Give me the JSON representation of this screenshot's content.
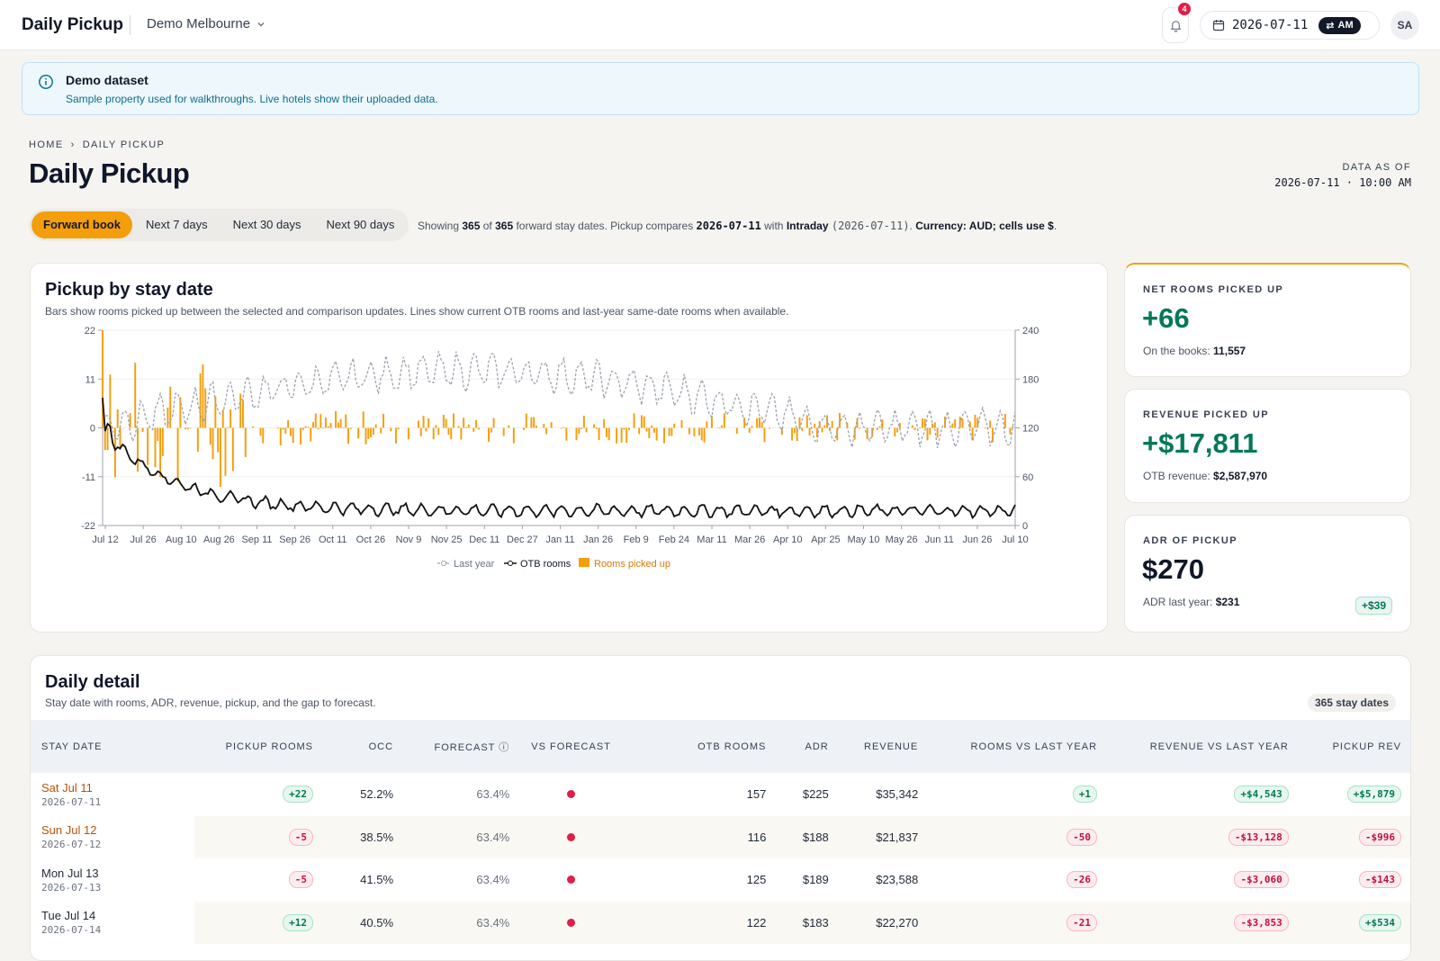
{
  "app": {
    "title": "Daily Pickup",
    "property": "Demo Melbourne",
    "notifications": "4",
    "date": "2026-07-11",
    "session": "AM",
    "user_initials": "SA"
  },
  "banner": {
    "title": "Demo dataset",
    "text": "Sample property used for walkthroughs. Live hotels show their uploaded data."
  },
  "breadcrumb": {
    "home": "HOME",
    "current": "DAILY PICKUP"
  },
  "page_title": "Daily Pickup",
  "data_as_of": {
    "label": "DATA AS OF",
    "value": "2026-07-11 · 10:00 AM"
  },
  "tabs": [
    "Forward book",
    "Next 7 days",
    "Next 30 days",
    "Next 90 days"
  ],
  "active_tab": "Forward book",
  "showing": {
    "p1": "Showing ",
    "shown": "365",
    "p2": " of ",
    "total": "365",
    "p3": " forward stay dates. Pickup compares ",
    "selected": "2026-07-11",
    "p4": " with ",
    "comparison": "Intraday",
    "comparison_date": "(2026-07-11)",
    "p5": ". ",
    "currency": "Currency: AUD; cells use $",
    "p6": "."
  },
  "chart": {
    "title": "Pickup by stay date",
    "subtitle": "Bars show rooms picked up between the selected and comparison updates. Lines show current OTB rooms and last-year same-date rooms when available."
  },
  "chart_data": {
    "type": "bar+line",
    "x_ticks": [
      "Jul 12",
      "Jul 26",
      "Aug 10",
      "Aug 26",
      "Sep 11",
      "Sep 26",
      "Oct 11",
      "Oct 26",
      "Nov 9",
      "Nov 25",
      "Dec 11",
      "Dec 27",
      "Jan 11",
      "Jan 26",
      "Feb 9",
      "Feb 24",
      "Mar 11",
      "Mar 26",
      "Apr 10",
      "Apr 25",
      "May 10",
      "May 26",
      "Jun 11",
      "Jun 26",
      "Jul 10"
    ],
    "y_left_ticks": [
      "22",
      "11",
      "0",
      "-11",
      "-22"
    ],
    "y_left_range": [
      -22,
      22
    ],
    "y_right_ticks": [
      "240",
      "180",
      "120",
      "60",
      "0"
    ],
    "y_right_range": [
      0,
      240
    ],
    "legend": [
      "Last year",
      "OTB rooms",
      "Rooms picked up"
    ],
    "legend_placement": "bottom-center",
    "series_colors": {
      "last_year": "#9ca3af",
      "otb_rooms": "#111111",
      "rooms_picked_up": "#f59e0b"
    },
    "first_values": {
      "stay_date": [
        "2026-07-11",
        "2026-07-12",
        "2026-07-13",
        "2026-07-14"
      ],
      "rooms_picked_up": [
        22,
        -5,
        -5,
        12
      ],
      "otb_rooms": [
        157,
        116,
        125,
        122
      ]
    },
    "otb_rooms_trend": {
      "start": 157,
      "day_90": 30,
      "end_range": [
        16,
        28
      ]
    },
    "last_year_trend": {
      "start": 120,
      "peak_range": [
        170,
        220
      ],
      "end": 140
    },
    "rooms_picked_up_typical_range": [
      -4,
      4
    ]
  },
  "kpis": [
    {
      "label": "NET ROOMS PICKED UP",
      "value": "+66",
      "sub_label": "On the books: ",
      "sub_value": "11,557"
    },
    {
      "label": "REVENUE PICKED UP",
      "value": "+$17,811",
      "sub_label": "OTB revenue: ",
      "sub_value": "$2,587,970"
    },
    {
      "label": "ADR OF PICKUP",
      "value": "$270",
      "sub_label": "ADR last year: ",
      "sub_value": "$231",
      "delta": "+$39"
    }
  ],
  "table": {
    "title": "Daily detail",
    "subtitle": "Stay date with rooms, ADR, revenue, pickup, and the gap to forecast.",
    "count": "365 stay dates",
    "columns": [
      "STAY DATE",
      "PICKUP ROOMS",
      "OCC",
      "FORECAST",
      "VS FORECAST",
      "OTB ROOMS",
      "ADR",
      "REVENUE",
      "ROOMS VS LAST YEAR",
      "REVENUE VS LAST YEAR",
      "PICKUP REV"
    ],
    "rows": [
      {
        "day": "Sat Jul 11",
        "date": "2026-07-11",
        "weekend": true,
        "pickup": "+22",
        "occ": "52.2%",
        "forecast": "63.4%",
        "otb": "157",
        "adr": "$225",
        "revenue": "$35,342",
        "rooms_ly": "+1",
        "rev_ly": "+$4,543",
        "pickup_rev": "+$5,879"
      },
      {
        "day": "Sun Jul 12",
        "date": "2026-07-12",
        "weekend": true,
        "pickup": "-5",
        "occ": "38.5%",
        "forecast": "63.4%",
        "otb": "116",
        "adr": "$188",
        "revenue": "$21,837",
        "rooms_ly": "-50",
        "rev_ly": "-$13,128",
        "pickup_rev": "-$996"
      },
      {
        "day": "Mon Jul 13",
        "date": "2026-07-13",
        "weekend": false,
        "pickup": "-5",
        "occ": "41.5%",
        "forecast": "63.4%",
        "otb": "125",
        "adr": "$189",
        "revenue": "$23,588",
        "rooms_ly": "-26",
        "rev_ly": "-$3,060",
        "pickup_rev": "-$143"
      },
      {
        "day": "Tue Jul 14",
        "date": "2026-07-14",
        "weekend": false,
        "pickup": "+12",
        "occ": "40.5%",
        "forecast": "63.4%",
        "otb": "122",
        "adr": "$183",
        "revenue": "$22,270",
        "rooms_ly": "-21",
        "rev_ly": "-$3,853",
        "pickup_rev": "+$534"
      }
    ]
  }
}
